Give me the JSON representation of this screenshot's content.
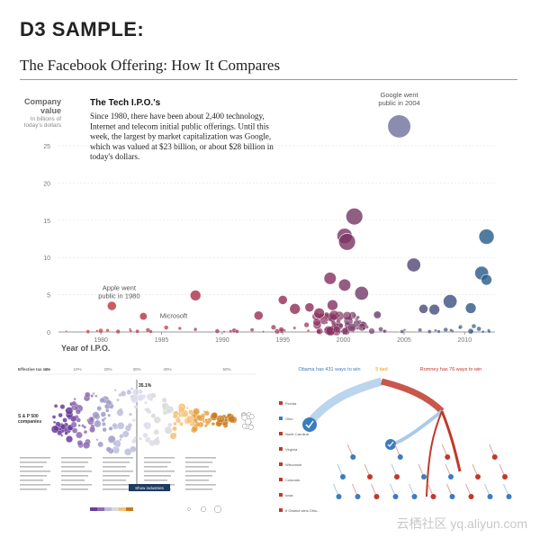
{
  "header": {
    "title": "D3 SAMPLE:",
    "subtitle": "The Facebook Offering: How It Compares"
  },
  "chart_data": [
    {
      "type": "scatter",
      "title": "The Tech I.P.O.'s",
      "description_lines": [
        "Since 1980, there have been about 2,400 technology,",
        "Internet and telecom initial public offerings. Until this",
        "week, the largest by market capitalization was Google,",
        "which was valued at $23 billion, or about $28 billion in",
        "today's dollars."
      ],
      "ylabel_lines": [
        "Company",
        "value"
      ],
      "ylabel_sub_lines": [
        "In billions of",
        "today's dollars"
      ],
      "xlabel": "Year of I.P.O.",
      "xlim": [
        1976.5,
        2012.5
      ],
      "ylim": [
        0,
        25
      ],
      "yticks": [
        0,
        5,
        10,
        15,
        20,
        25
      ],
      "xticks": [
        1980,
        1985,
        1990,
        1995,
        2000,
        2005,
        2010
      ],
      "highlighted_points": [
        {
          "year": 2004.6,
          "value": 27.6,
          "size": 1.5
        },
        {
          "year": 2000.9,
          "value": 15.5,
          "size": 1.1
        },
        {
          "year": 2000.1,
          "value": 12.9,
          "size": 1.0
        },
        {
          "year": 2000.3,
          "value": 12.1,
          "size": 1.1
        },
        {
          "year": 2005.8,
          "value": 9.0,
          "size": 0.9
        },
        {
          "year": 2011.8,
          "value": 12.8,
          "size": 1.0
        },
        {
          "year": 2011.4,
          "value": 7.9,
          "size": 0.9
        },
        {
          "year": 2011.8,
          "value": 7.0,
          "size": 0.7
        },
        {
          "year": 1998.9,
          "value": 7.2,
          "size": 0.8
        },
        {
          "year": 2000.1,
          "value": 6.3,
          "size": 0.8
        },
        {
          "year": 2001.5,
          "value": 5.2,
          "size": 0.9
        },
        {
          "year": 1987.8,
          "value": 4.9,
          "size": 0.7
        },
        {
          "year": 1980.9,
          "value": 3.5,
          "size": 0.6
        },
        {
          "year": 1983.5,
          "value": 2.1,
          "size": 0.5
        },
        {
          "year": 2008.8,
          "value": 4.1,
          "size": 0.9
        },
        {
          "year": 2007.5,
          "value": 3.0,
          "size": 0.7
        },
        {
          "year": 1995.0,
          "value": 4.3,
          "size": 0.6
        },
        {
          "year": 1996.0,
          "value": 3.1,
          "size": 0.7
        },
        {
          "year": 1997.2,
          "value": 3.3,
          "size": 0.6
        },
        {
          "year": 1999.1,
          "value": 3.6,
          "size": 0.7
        },
        {
          "year": 1998.0,
          "value": 2.5,
          "size": 0.7
        },
        {
          "year": 2002.8,
          "value": 2.3,
          "size": 0.5
        },
        {
          "year": 2010.5,
          "value": 3.2,
          "size": 0.7
        },
        {
          "year": 1993.0,
          "value": 2.2,
          "size": 0.6
        },
        {
          "year": 2006.6,
          "value": 3.1,
          "size": 0.6
        }
      ],
      "annotations": [
        {
          "lines": [
            "Google went",
            "public in 2004"
          ],
          "year": 2004.6,
          "value": 31.5
        },
        {
          "lines": [
            "Apple went",
            "public in 1980"
          ],
          "year": 1981.5,
          "value": 5.6
        },
        {
          "lines": [
            "Microsoft"
          ],
          "year": 1986.0,
          "value": 1.9
        }
      ]
    },
    {
      "type": "scatter",
      "labels": [
        "Effective tax rate",
        "0%",
        "10%",
        "20%",
        "30%",
        "40%",
        "50%",
        "S & P 500",
        "companies",
        "35.1%",
        "Show industries"
      ]
    },
    {
      "type": "other",
      "labels": [
        "Obama has 431 ways to win",
        "5 tied",
        "Romney has 76 ways to win",
        "Florida",
        "Ohio",
        "North Carolina",
        "Virginia",
        "Wisconsin",
        "Colorado",
        "Iowa",
        "If Obama wins Ohio..."
      ]
    }
  ],
  "watermark": "云栖社区 yq.aliyun.com",
  "colors": {
    "early": "#cc3333",
    "mid": "#8a2c5a",
    "late": "#1f5d8c",
    "google": "#6f6f9e"
  }
}
